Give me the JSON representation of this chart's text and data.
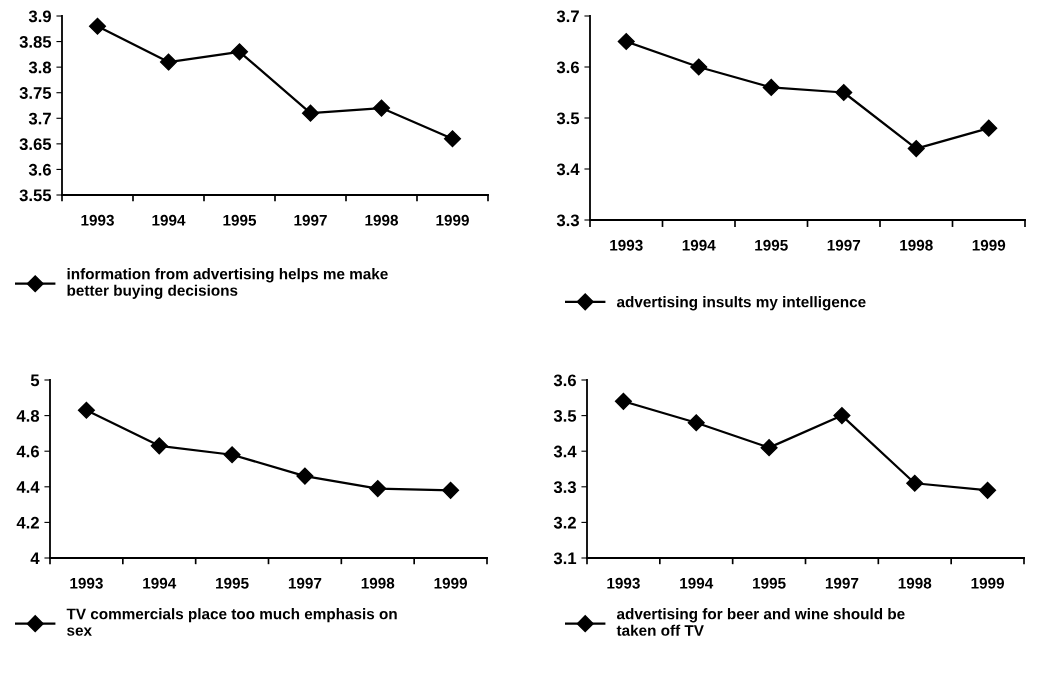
{
  "chart_data": [
    {
      "type": "line",
      "categories": [
        "1993",
        "1994",
        "1995",
        "1997",
        "1998",
        "1999"
      ],
      "series": [
        {
          "name": "information from advertising helps me make better buying decisions",
          "color": "#000000",
          "values": [
            3.88,
            3.81,
            3.83,
            3.71,
            3.72,
            3.66
          ]
        }
      ],
      "ylim": [
        3.55,
        3.9
      ],
      "yticks": [
        3.55,
        3.6,
        3.65,
        3.7,
        3.75,
        3.8,
        3.85,
        3.9
      ],
      "marker": "diamond",
      "line_style": "solid",
      "legend": "bottom",
      "grid": false
    },
    {
      "type": "line",
      "categories": [
        "1993",
        "1994",
        "1995",
        "1997",
        "1998",
        "1999"
      ],
      "series": [
        {
          "name": "advertising insults my intelligence",
          "color": "#000000",
          "values": [
            3.65,
            3.6,
            3.56,
            3.55,
            3.44,
            3.48
          ]
        }
      ],
      "ylim": [
        3.3,
        3.7
      ],
      "yticks": [
        3.3,
        3.4,
        3.5,
        3.6,
        3.7
      ],
      "marker": "diamond",
      "line_style": "solid",
      "legend": "bottom",
      "grid": false
    },
    {
      "type": "line",
      "categories": [
        "1993",
        "1994",
        "1995",
        "1997",
        "1998",
        "1999"
      ],
      "series": [
        {
          "name": "TV commercials place too much emphasis on sex",
          "color": "#000000",
          "values": [
            4.83,
            4.63,
            4.58,
            4.46,
            4.39,
            4.38
          ]
        }
      ],
      "ylim": [
        4,
        5
      ],
      "yticks": [
        4,
        4.2,
        4.4,
        4.6,
        4.8,
        5
      ],
      "marker": "diamond",
      "line_style": "solid",
      "legend": "bottom",
      "grid": false
    },
    {
      "type": "line",
      "categories": [
        "1993",
        "1994",
        "1995",
        "1997",
        "1998",
        "1999"
      ],
      "series": [
        {
          "name": "advertising for beer and wine should be taken off TV",
          "color": "#000000",
          "values": [
            3.54,
            3.48,
            3.41,
            3.5,
            3.31,
            3.29
          ]
        }
      ],
      "ylim": [
        3.1,
        3.6
      ],
      "yticks": [
        3.1,
        3.2,
        3.3,
        3.4,
        3.5,
        3.6
      ],
      "marker": "diamond",
      "line_style": "solid",
      "legend": "bottom",
      "grid": false
    }
  ]
}
